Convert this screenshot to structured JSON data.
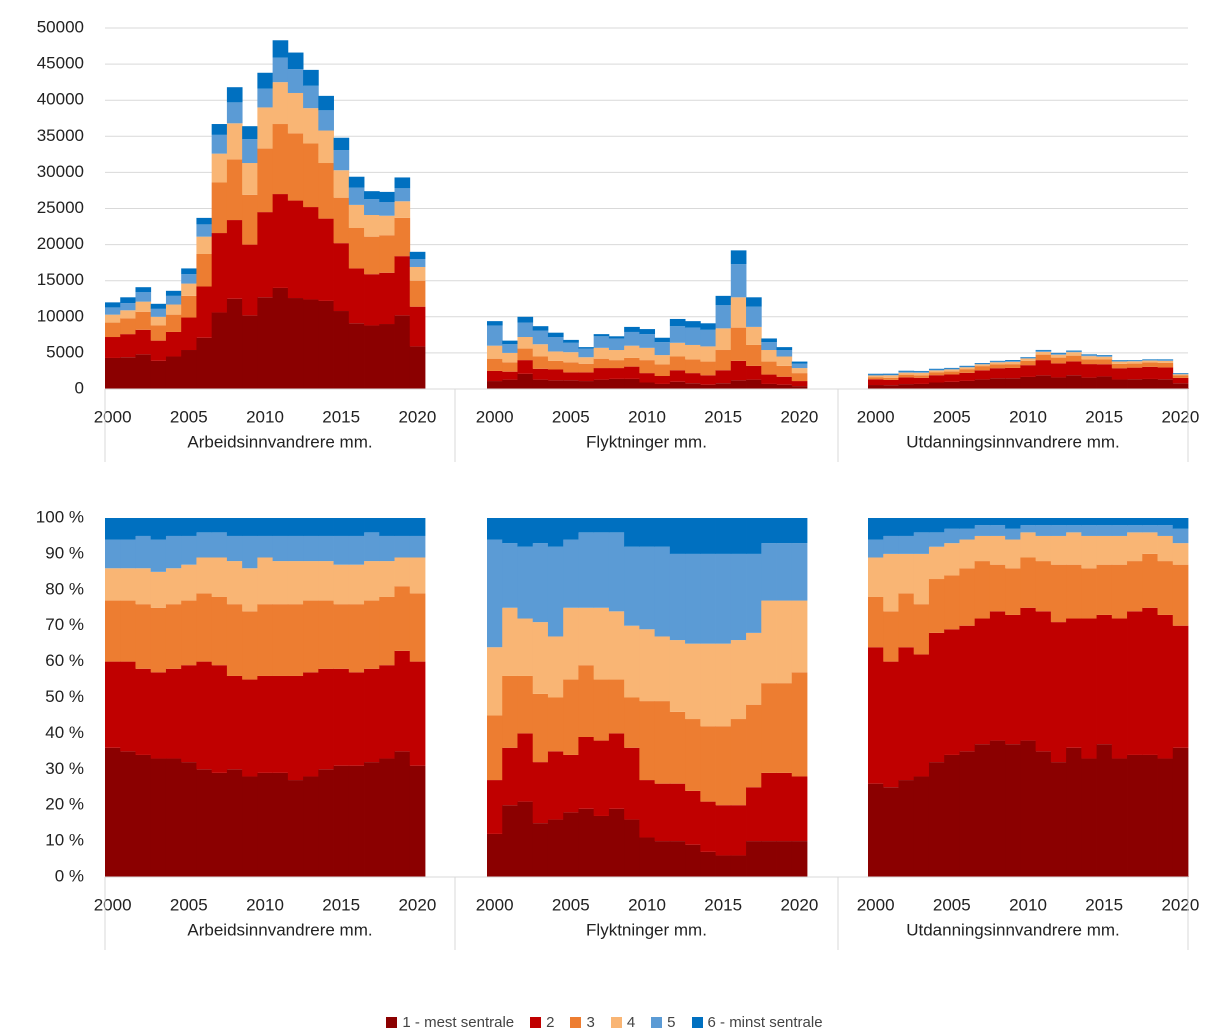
{
  "chart_data": [
    {
      "type": "bar",
      "stacked": true,
      "grid": true,
      "ylim": [
        0,
        50000
      ],
      "yticks": [
        0,
        5000,
        10000,
        15000,
        20000,
        25000,
        30000,
        35000,
        40000,
        45000,
        50000
      ],
      "categories": [
        2000,
        null,
        null,
        null,
        null,
        2005,
        null,
        null,
        null,
        null,
        2010,
        null,
        null,
        null,
        null,
        2015,
        null,
        null,
        null,
        null,
        2020
      ],
      "groups": [
        "Arbeidsinnvandrere mm.",
        "Flyktninger mm.",
        "Utdanningsinnvandrere mm."
      ],
      "series": [
        {
          "name": "1 - mest sentrale",
          "color": "#8b0000",
          "values": [
            [
              4300,
              4400,
              4800,
              3900,
              4500,
              5400,
              7100,
              10600,
              12500,
              10200,
              12700,
              14000,
              12600,
              12400,
              12200,
              10800,
              9100,
              8800,
              9000,
              10200,
              5900
            ],
            [
              1100,
              1300,
              2100,
              1300,
              1200,
              1200,
              1100,
              1300,
              1400,
              1400,
              900,
              700,
              1000,
              800,
              600,
              800,
              1200,
              1300,
              700,
              600,
              400
            ],
            [
              550,
              530,
              680,
              700,
              900,
              990,
              1120,
              1330,
              1480,
              1480,
              1670,
              1890,
              1600,
              1910,
              1580,
              1740,
              1320,
              1360,
              1390,
              1350,
              790
            ]
          ]
        },
        {
          "name": "2",
          "color": "#c00000",
          "values": [
            [
              2900,
              3200,
              3400,
              2800,
              3400,
              4500,
              7100,
              11000,
              10900,
              9800,
              11800,
              13000,
              13500,
              12800,
              11400,
              9400,
              7600,
              7100,
              7100,
              8200,
              5500
            ],
            [
              1400,
              1100,
              1900,
              1500,
              1500,
              1100,
              1200,
              1600,
              1500,
              1700,
              1300,
              1100,
              1600,
              1400,
              1300,
              1800,
              2700,
              1900,
              1300,
              1100,
              700
            ],
            [
              800,
              740,
              930,
              850,
              1010,
              1020,
              1120,
              1260,
              1400,
              1440,
              1630,
              2110,
              1950,
              1910,
              1870,
              1690,
              1560,
              1600,
              1680,
              1640,
              750
            ]
          ]
        },
        {
          "name": "3",
          "color": "#ed7d31",
          "values": [
            [
              2000,
              2200,
              2500,
              2100,
              2400,
              3000,
              4500,
              7000,
              8400,
              6900,
              8800,
              9700,
              9300,
              8800,
              7700,
              6300,
              5600,
              5200,
              5200,
              5300,
              3600
            ],
            [
              1700,
              1300,
              1600,
              1700,
              1200,
              1400,
              1200,
              1300,
              1100,
              1200,
              1800,
              1600,
              1900,
              1900,
              1900,
              2800,
              4600,
              2900,
              1800,
              1500,
              1100
            ],
            [
              290,
              290,
              380,
              350,
              420,
              440,
              510,
              580,
              510,
              520,
              620,
              760,
              800,
              800,
              670,
              660,
              600,
              560,
              620,
              620,
              370
            ]
          ]
        },
        {
          "name": "4",
          "color": "#f9b574",
          "values": [
            [
              1100,
              1100,
              1400,
              1200,
              1400,
              1700,
              2400,
              4000,
              5000,
              4400,
              5700,
              5800,
              5600,
              4900,
              4500,
              3800,
              3200,
              3000,
              2700,
              2300,
              1900
            ],
            [
              1800,
              1300,
              1600,
              1700,
              1300,
              1400,
              900,
              1500,
              1400,
              1700,
              1700,
              1300,
              1900,
              2000,
              2100,
              3000,
              4200,
              2500,
              1600,
              1300,
              700
            ],
            [
              230,
              340,
              280,
              350,
              250,
              260,
              260,
              250,
              310,
              320,
              310,
              380,
              400,
              480,
              430,
              380,
              320,
              320,
              250,
              290,
              130
            ]
          ]
        },
        {
          "name": "5",
          "color": "#5b9bd5",
          "values": [
            [
              1000,
              1000,
              1300,
              1100,
              1200,
              1300,
              1700,
              2600,
              2900,
              3300,
              2600,
              3400,
              3300,
              3100,
              2800,
              2800,
              2400,
              2200,
              1900,
              1800,
              1100
            ],
            [
              2800,
              1200,
              2000,
              1900,
              2000,
              1300,
              1200,
              1600,
              1600,
              1900,
              1900,
              1800,
              2300,
              2400,
              2300,
              3200,
              4600,
              2800,
              1100,
              900,
              600
            ],
            [
              110,
              110,
              130,
              150,
              110,
              120,
              100,
              110,
              120,
              120,
              90,
              160,
              150,
              110,
              140,
              140,
              120,
              80,
              80,
              120,
              90
            ]
          ]
        },
        {
          "name": "6 - minst sentrale",
          "color": "#0070c0",
          "values": [
            [
              700,
              800,
              700,
              700,
              700,
              800,
              900,
              1500,
              2100,
              1800,
              2200,
              2400,
              2300,
              2200,
              2000,
              1700,
              1500,
              1100,
              1400,
              1500,
              1000
            ],
            [
              600,
              500,
              800,
              600,
              600,
              400,
              200,
              300,
              300,
              700,
              700,
              600,
              1000,
              900,
              900,
              1300,
              1900,
              1300,
              500,
              400,
              300
            ],
            [
              130,
              110,
              130,
              100,
              110,
              90,
              100,
              70,
              80,
              120,
              90,
              110,
              100,
              110,
              100,
              90,
              80,
              80,
              80,
              80,
              70
            ]
          ]
        }
      ]
    },
    {
      "type": "bar",
      "stacked": true,
      "grid": false,
      "ylim": [
        0,
        100
      ],
      "yticks": [
        {
          "value": 0,
          "label": "0 %"
        },
        {
          "value": 10,
          "label": "10 %"
        },
        {
          "value": 20,
          "label": "20 %"
        },
        {
          "value": 30,
          "label": "30 %"
        },
        {
          "value": 40,
          "label": "40 %"
        },
        {
          "value": 50,
          "label": "50 %"
        },
        {
          "value": 60,
          "label": "60 %"
        },
        {
          "value": 70,
          "label": "70 %"
        },
        {
          "value": 80,
          "label": "80 %"
        },
        {
          "value": 90,
          "label": "90 %"
        },
        {
          "value": 100,
          "label": "100 %"
        }
      ],
      "categories": [
        2000,
        null,
        null,
        null,
        null,
        2005,
        null,
        null,
        null,
        null,
        2010,
        null,
        null,
        null,
        null,
        2015,
        null,
        null,
        null,
        null,
        2020
      ],
      "groups": [
        "Arbeidsinnvandrere mm.",
        "Flyktninger mm.",
        "Utdanningsinnvandrere mm."
      ],
      "series": [
        {
          "color": "#8b0000",
          "values": [
            [
              36,
              35,
              34,
              33,
              33,
              32,
              30,
              29,
              30,
              28,
              29,
              29,
              27,
              28,
              30,
              31,
              31,
              32,
              33,
              35,
              31
            ],
            [
              12,
              20,
              21,
              15,
              16,
              18,
              19,
              17,
              19,
              16,
              11,
              10,
              10,
              9,
              7,
              6,
              6,
              10,
              10,
              10,
              10
            ],
            [
              26,
              25,
              27,
              28,
              32,
              34,
              35,
              37,
              38,
              37,
              38,
              35,
              32,
              36,
              33,
              37,
              33,
              34,
              34,
              33,
              36
            ]
          ]
        },
        {
          "color": "#c00000",
          "values": [
            [
              24,
              25,
              24,
              24,
              25,
              27,
              30,
              30,
              26,
              27,
              27,
              27,
              29,
              29,
              28,
              27,
              26,
              26,
              26,
              28,
              29
            ],
            [
              15,
              16,
              19,
              17,
              19,
              16,
              20,
              21,
              21,
              20,
              16,
              16,
              16,
              15,
              14,
              14,
              14,
              15,
              19,
              19,
              18
            ],
            [
              38,
              35,
              37,
              34,
              36,
              35,
              35,
              35,
              36,
              36,
              37,
              39,
              39,
              36,
              39,
              36,
              39,
              40,
              41,
              40,
              34
            ]
          ]
        },
        {
          "color": "#ed7d31",
          "values": [
            [
              17,
              17,
              18,
              18,
              18,
              18,
              19,
              19,
              20,
              19,
              20,
              20,
              20,
              20,
              19,
              18,
              19,
              19,
              19,
              18,
              19
            ],
            [
              18,
              20,
              16,
              19,
              15,
              21,
              20,
              17,
              15,
              14,
              22,
              23,
              20,
              20,
              21,
              22,
              24,
              23,
              25,
              25,
              29
            ],
            [
              14,
              14,
              15,
              14,
              15,
              15,
              16,
              16,
              13,
              13,
              14,
              14,
              16,
              15,
              14,
              14,
              15,
              14,
              15,
              15,
              17
            ]
          ]
        },
        {
          "color": "#f9b574",
          "values": [
            [
              9,
              9,
              10,
              10,
              10,
              10,
              10,
              11,
              12,
              12,
              13,
              12,
              12,
              11,
              11,
              11,
              11,
              11,
              10,
              8,
              10
            ],
            [
              19,
              19,
              16,
              20,
              17,
              20,
              16,
              20,
              19,
              20,
              20,
              18,
              20,
              21,
              23,
              23,
              22,
              20,
              23,
              23,
              20
            ],
            [
              11,
              16,
              11,
              14,
              9,
              9,
              8,
              7,
              8,
              8,
              7,
              7,
              8,
              9,
              9,
              8,
              8,
              8,
              6,
              7,
              6
            ]
          ]
        },
        {
          "color": "#5b9bd5",
          "values": [
            [
              8,
              8,
              9,
              9,
              9,
              8,
              7,
              7,
              7,
              9,
              6,
              7,
              7,
              7,
              7,
              8,
              8,
              8,
              7,
              6,
              6
            ],
            [
              30,
              18,
              20,
              22,
              25,
              19,
              21,
              21,
              22,
              22,
              23,
              25,
              24,
              25,
              25,
              25,
              24,
              22,
              16,
              16,
              16
            ],
            [
              5,
              5,
              5,
              6,
              4,
              4,
              3,
              3,
              3,
              3,
              2,
              3,
              3,
              2,
              3,
              3,
              3,
              2,
              2,
              3,
              4
            ]
          ]
        },
        {
          "color": "#0070c0",
          "values": [
            [
              6,
              6,
              5,
              6,
              5,
              5,
              4,
              4,
              5,
              5,
              5,
              5,
              5,
              5,
              5,
              5,
              5,
              4,
              5,
              5,
              5
            ],
            [
              6,
              7,
              8,
              7,
              8,
              6,
              4,
              4,
              4,
              8,
              8,
              8,
              10,
              10,
              10,
              10,
              10,
              10,
              7,
              7,
              7
            ],
            [
              6,
              5,
              5,
              4,
              4,
              3,
              3,
              2,
              2,
              3,
              2,
              2,
              2,
              2,
              2,
              2,
              2,
              2,
              2,
              2,
              3
            ]
          ]
        }
      ]
    }
  ]
}
